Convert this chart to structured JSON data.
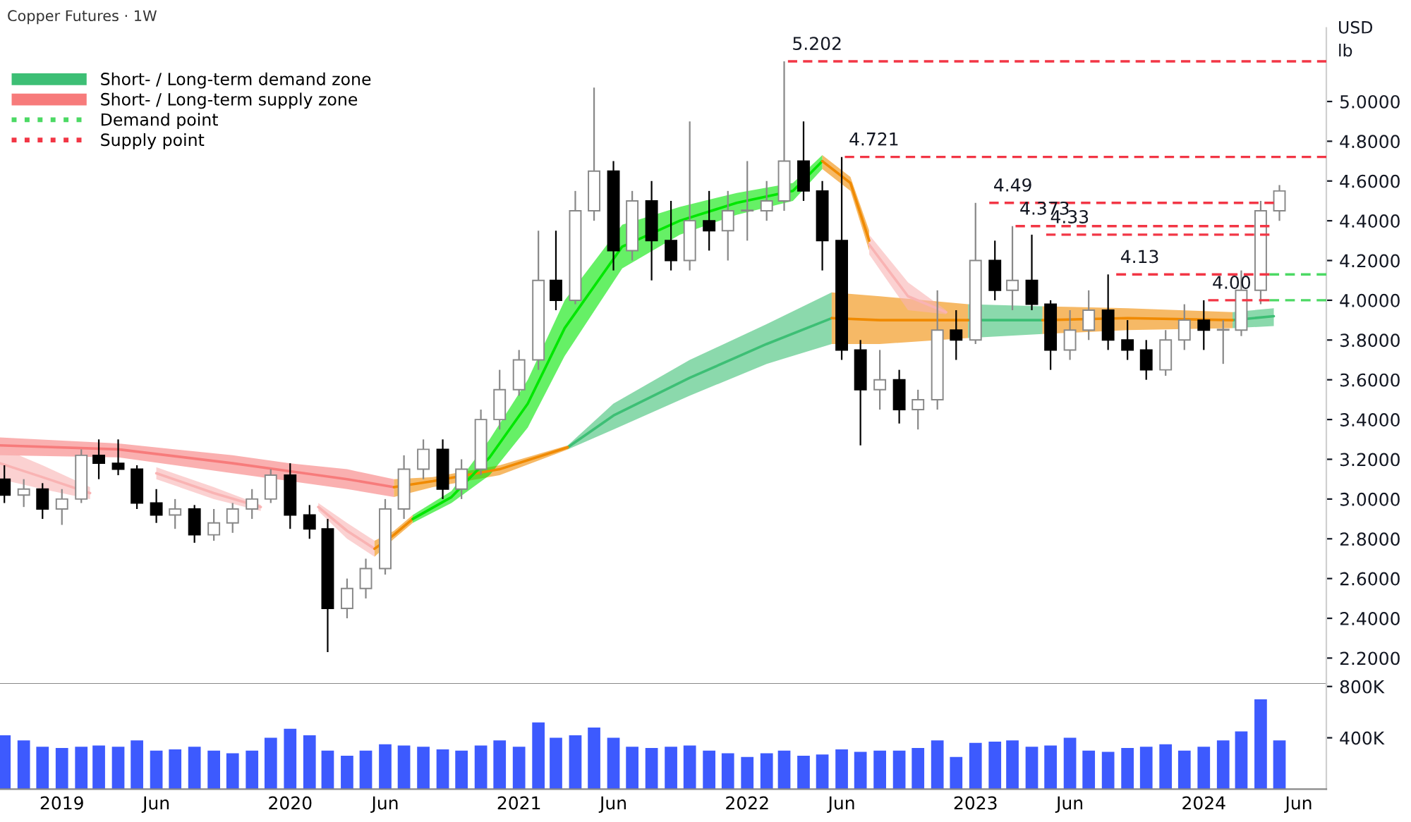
{
  "chart_data": [
    {
      "type": "candlestick",
      "title": "Copper Futures · 1W",
      "legend": "top left",
      "grid": false,
      "tick_labels": "y",
      "annotations": [
        "USD",
        "lb",
        {
          "text": "5.202",
          "x": "2022-03-07",
          "y": 5.202
        },
        {
          "text": "4.721",
          "x": "2022-06-06",
          "y": 4.721
        },
        {
          "text": "4.49",
          "x": "2023-01-23",
          "y": 4.49
        },
        {
          "text": "4.373",
          "x": "2023-03-06",
          "y": 4.373
        },
        {
          "text": "4.33",
          "x": "2023-04-24",
          "y": 4.33
        },
        {
          "text": "4.13",
          "x": "2023-08-14",
          "y": 4.13
        },
        {
          "text": "4.00",
          "x": "2024-01-08",
          "y": 4.0
        }
      ],
      "xlim": [
        "2018-09-24",
        "2024-07-15"
      ],
      "ylim": [
        2.07,
        5.37
      ],
      "yticks": [
        {
          "value": 2.2,
          "label": "2.2000"
        },
        {
          "value": 2.4,
          "label": "2.4000"
        },
        {
          "value": 2.6,
          "label": "2.6000"
        },
        {
          "value": 2.8,
          "label": "2.8000"
        },
        {
          "value": 3.0,
          "label": "3.0000"
        },
        {
          "value": 3.2,
          "label": "3.2000"
        },
        {
          "value": 3.4,
          "label": "3.4000"
        },
        {
          "value": 3.6,
          "label": "3.6000"
        },
        {
          "value": 3.8,
          "label": "3.8000"
        },
        {
          "value": 4.0,
          "label": "4.0000"
        },
        {
          "value": 4.2,
          "label": "4.2000"
        },
        {
          "value": 4.4,
          "label": "4.4000"
        },
        {
          "value": 4.6,
          "label": "4.6000"
        },
        {
          "value": 4.8,
          "label": "4.8000"
        },
        {
          "value": 5.0,
          "label": "5.0000"
        }
      ],
      "x": [
        "2018-10",
        "2018-11",
        "2018-12",
        "2019-01",
        "2019-02",
        "2019-03",
        "2019-04",
        "2019-05",
        "2019-06",
        "2019-07",
        "2019-08",
        "2019-09",
        "2019-10",
        "2019-11",
        "2019-12",
        "2020-01",
        "2020-02",
        "2020-03",
        "2020-04",
        "2020-05",
        "2020-06",
        "2020-07",
        "2020-08",
        "2020-09",
        "2020-10",
        "2020-11",
        "2020-12",
        "2021-01",
        "2021-02",
        "2021-03",
        "2021-04",
        "2021-05",
        "2021-06",
        "2021-07",
        "2021-08",
        "2021-09",
        "2021-10",
        "2021-11",
        "2021-12",
        "2022-01",
        "2022-02",
        "2022-03",
        "2022-04",
        "2022-05",
        "2022-06",
        "2022-07",
        "2022-08",
        "2022-09",
        "2022-10",
        "2022-11",
        "2022-12",
        "2023-01",
        "2023-02",
        "2023-03",
        "2023-04",
        "2023-05",
        "2023-06",
        "2023-07",
        "2023-08",
        "2023-09",
        "2023-10",
        "2023-11",
        "2023-12",
        "2024-01",
        "2024-02",
        "2024-03",
        "2024-04",
        "2024-05"
      ],
      "ohlc": [
        [
          3.1,
          3.17,
          2.98,
          3.02
        ],
        [
          3.02,
          3.1,
          2.96,
          3.05
        ],
        [
          3.05,
          3.08,
          2.9,
          2.95
        ],
        [
          2.95,
          3.05,
          2.87,
          3.0
        ],
        [
          3.0,
          3.25,
          2.98,
          3.22
        ],
        [
          3.22,
          3.3,
          3.1,
          3.18
        ],
        [
          3.18,
          3.3,
          3.12,
          3.15
        ],
        [
          3.15,
          3.17,
          2.95,
          2.98
        ],
        [
          2.98,
          3.05,
          2.88,
          2.92
        ],
        [
          2.92,
          3.0,
          2.85,
          2.95
        ],
        [
          2.95,
          2.97,
          2.78,
          2.82
        ],
        [
          2.82,
          2.95,
          2.79,
          2.88
        ],
        [
          2.88,
          2.98,
          2.83,
          2.95
        ],
        [
          2.95,
          3.05,
          2.9,
          3.0
        ],
        [
          3.0,
          3.15,
          2.98,
          3.12
        ],
        [
          3.12,
          3.18,
          2.85,
          2.92
        ],
        [
          2.92,
          2.97,
          2.8,
          2.85
        ],
        [
          2.85,
          2.9,
          2.23,
          2.45
        ],
        [
          2.45,
          2.6,
          2.4,
          2.55
        ],
        [
          2.55,
          2.7,
          2.5,
          2.65
        ],
        [
          2.65,
          3.0,
          2.62,
          2.95
        ],
        [
          2.95,
          3.22,
          2.9,
          3.15
        ],
        [
          3.15,
          3.3,
          3.1,
          3.25
        ],
        [
          3.25,
          3.3,
          3.0,
          3.05
        ],
        [
          3.05,
          3.2,
          3.0,
          3.15
        ],
        [
          3.15,
          3.45,
          3.12,
          3.4
        ],
        [
          3.4,
          3.65,
          3.35,
          3.55
        ],
        [
          3.55,
          3.75,
          3.52,
          3.7
        ],
        [
          3.7,
          4.35,
          3.65,
          4.1
        ],
        [
          4.1,
          4.35,
          3.95,
          4.0
        ],
        [
          4.0,
          4.55,
          3.98,
          4.45
        ],
        [
          4.45,
          5.07,
          4.4,
          4.65
        ],
        [
          4.65,
          4.7,
          4.15,
          4.25
        ],
        [
          4.25,
          4.55,
          4.2,
          4.5
        ],
        [
          4.5,
          4.6,
          4.1,
          4.3
        ],
        [
          4.3,
          4.5,
          4.15,
          4.2
        ],
        [
          4.2,
          4.9,
          4.15,
          4.4
        ],
        [
          4.4,
          4.55,
          4.25,
          4.35
        ],
        [
          4.35,
          4.55,
          4.2,
          4.45
        ],
        [
          4.45,
          4.7,
          4.3,
          4.45
        ],
        [
          4.45,
          4.6,
          4.4,
          4.5
        ],
        [
          4.5,
          5.202,
          4.45,
          4.7
        ],
        [
          4.7,
          4.9,
          4.5,
          4.55
        ],
        [
          4.55,
          4.6,
          4.15,
          4.3
        ],
        [
          4.3,
          4.721,
          3.7,
          3.75
        ],
        [
          3.75,
          3.8,
          3.27,
          3.55
        ],
        [
          3.55,
          3.75,
          3.45,
          3.6
        ],
        [
          3.6,
          3.65,
          3.38,
          3.45
        ],
        [
          3.45,
          3.55,
          3.35,
          3.5
        ],
        [
          3.5,
          4.05,
          3.45,
          3.85
        ],
        [
          3.85,
          3.95,
          3.7,
          3.8
        ],
        [
          3.8,
          4.49,
          3.78,
          4.2
        ],
        [
          4.2,
          4.3,
          4.0,
          4.05
        ],
        [
          4.05,
          4.373,
          3.95,
          4.1
        ],
        [
          4.1,
          4.33,
          3.95,
          3.98
        ],
        [
          3.98,
          4.0,
          3.65,
          3.75
        ],
        [
          3.75,
          3.95,
          3.7,
          3.85
        ],
        [
          3.85,
          4.05,
          3.8,
          3.95
        ],
        [
          3.95,
          4.13,
          3.75,
          3.8
        ],
        [
          3.8,
          3.9,
          3.7,
          3.75
        ],
        [
          3.75,
          3.8,
          3.6,
          3.65
        ],
        [
          3.65,
          3.85,
          3.62,
          3.8
        ],
        [
          3.8,
          3.98,
          3.75,
          3.9
        ],
        [
          3.9,
          4.0,
          3.75,
          3.85
        ],
        [
          3.85,
          3.9,
          3.68,
          3.85
        ],
        [
          3.85,
          4.15,
          3.82,
          4.05
        ],
        [
          4.05,
          4.5,
          3.98,
          4.45
        ],
        [
          4.45,
          4.58,
          4.4,
          4.55
        ]
      ],
      "series": [
        {
          "type": "line",
          "name": "Short- / Long-term demand zone",
          "color": "#3dbf75",
          "x": [
            "2021-03-20",
            "2021-06-01",
            "2021-10-01",
            "2022-02-01",
            "2022-05-16",
            "2022-09-01",
            "2022-12-20",
            "2023-04-18",
            "2023-09-01",
            "2024-02-16",
            "2024-04-22"
          ],
          "lower": [
            3.25,
            3.35,
            3.52,
            3.68,
            3.78,
            null,
            3.81,
            3.83,
            null,
            3.86,
            3.87
          ],
          "upper": [
            3.27,
            3.48,
            3.7,
            3.88,
            4.04,
            null,
            3.98,
            3.97,
            null,
            3.94,
            3.96
          ],
          "values": [
            3.26,
            3.42,
            3.61,
            3.78,
            3.91,
            null,
            3.9,
            3.9,
            null,
            3.9,
            3.92
          ]
        },
        {
          "type": "line",
          "name": "Short- / Long-term supply zone",
          "color": "#f77b7b",
          "x": [
            "2018-09-24",
            "2019-04-01",
            "2019-10-01",
            "2020-01-01",
            "2020-04-01",
            "2020-06-15"
          ],
          "lower": [
            3.22,
            3.21,
            3.13,
            3.09,
            3.05,
            3.01
          ],
          "upper": [
            3.31,
            3.28,
            3.22,
            3.18,
            3.15,
            3.1
          ],
          "values": [
            3.27,
            3.25,
            3.18,
            3.14,
            3.1,
            3.06
          ]
        },
        {
          "type": "line",
          "color": "#f08a00",
          "x": [
            "2020-06-15",
            "2020-08-16",
            "2020-12-01",
            "2021-03-20"
          ],
          "lower": [
            3.01,
            3.06,
            3.12,
            3.25
          ],
          "upper": [
            3.1,
            3.11,
            3.17,
            3.27
          ],
          "values": [
            3.06,
            3.09,
            3.15,
            3.26
          ]
        },
        {
          "type": "line",
          "color": "#f08a00",
          "x": [
            "2022-05-16",
            "2022-08-01",
            "2022-12-20"
          ],
          "lower": [
            3.78,
            3.78,
            3.81
          ],
          "upper": [
            4.04,
            4.02,
            3.98
          ],
          "values": [
            3.91,
            3.9,
            3.9
          ]
        },
        {
          "type": "line",
          "color": "#f08a00",
          "x": [
            "2023-04-18",
            "2023-09-01",
            "2024-02-16"
          ],
          "lower": [
            3.83,
            3.85,
            3.86
          ],
          "upper": [
            3.97,
            3.96,
            3.94
          ],
          "values": [
            3.9,
            3.91,
            3.9
          ]
        },
        {
          "type": "line",
          "color": "#f9b3b3",
          "x": [
            "2018-09-24",
            "2018-12-01",
            "2019-02-15"
          ],
          "lower": [
            3.1,
            3.05,
            3.0
          ],
          "upper": [
            3.26,
            3.17,
            3.06
          ],
          "values": [
            3.18,
            3.11,
            3.03
          ]
        },
        {
          "type": "line",
          "color": "#f9b3b3",
          "x": [
            "2019-06-01",
            "2019-09-01",
            "2019-11-15"
          ],
          "lower": [
            3.1,
            3.0,
            2.94
          ],
          "upper": [
            3.16,
            3.06,
            2.97
          ],
          "values": [
            3.13,
            3.03,
            2.96
          ]
        },
        {
          "type": "line",
          "color": "#f9b3b3",
          "x": [
            "2020-02-15",
            "2020-04-01",
            "2020-05-15"
          ],
          "lower": [
            2.94,
            2.8,
            2.71
          ],
          "upper": [
            2.98,
            2.88,
            2.79
          ],
          "values": [
            2.96,
            2.84,
            2.75
          ]
        },
        {
          "type": "line",
          "color": "#f08a00",
          "x": [
            "2020-05-15",
            "2020-06-15",
            "2020-07-15"
          ],
          "lower": [
            2.71,
            2.8,
            2.88
          ],
          "upper": [
            2.79,
            2.84,
            2.92
          ],
          "values": [
            2.75,
            2.82,
            2.9
          ]
        },
        {
          "type": "line",
          "color": "#00e600",
          "x": [
            "2020-07-15",
            "2020-09-15",
            "2020-11-15",
            "2021-01-15",
            "2021-03-15",
            "2021-06-15",
            "2021-09-15",
            "2021-12-15",
            "2022-03-15",
            "2022-05-01"
          ],
          "lower": [
            2.88,
            2.98,
            3.12,
            3.36,
            3.72,
            4.16,
            4.33,
            4.43,
            4.5,
            4.66
          ],
          "upper": [
            2.92,
            3.04,
            3.3,
            3.6,
            4.0,
            4.38,
            4.47,
            4.54,
            4.59,
            4.73
          ],
          "values": [
            2.9,
            3.01,
            3.21,
            3.48,
            3.86,
            4.27,
            4.4,
            4.49,
            4.55,
            4.7
          ]
        },
        {
          "type": "line",
          "color": "#f08a00",
          "x": [
            "2022-05-01",
            "2022-06-15",
            "2022-07-15"
          ],
          "lower": [
            4.66,
            4.55,
            4.25
          ],
          "upper": [
            4.73,
            4.62,
            4.35
          ],
          "values": [
            4.7,
            4.59,
            4.3
          ]
        },
        {
          "type": "line",
          "color": "#f9b3b3",
          "x": [
            "2022-07-15",
            "2022-09-15",
            "2022-11-15"
          ],
          "lower": [
            4.23,
            3.95,
            3.93
          ],
          "upper": [
            4.33,
            4.09,
            3.95
          ],
          "values": [
            4.28,
            4.02,
            3.94
          ]
        },
        {
          "type": "line",
          "name": "Demand point",
          "color": "#4cd964",
          "line_style": "dashed",
          "x": [
            "2024-04-15",
            "2024-07-15"
          ],
          "values": [
            4.13,
            4.13
          ]
        },
        {
          "type": "line",
          "color": "#4cd964",
          "line_style": "dashed",
          "x": [
            "2024-04-15",
            "2024-07-15"
          ],
          "values": [
            4.0,
            4.0
          ]
        },
        {
          "type": "line",
          "name": "Supply point",
          "color": "#f23645",
          "line_style": "dashed",
          "x": [
            "2022-03-07",
            "2024-07-15"
          ],
          "values": [
            5.202,
            5.202
          ]
        },
        {
          "type": "line",
          "color": "#f23645",
          "line_style": "dashed",
          "x": [
            "2022-06-06",
            "2024-07-15"
          ],
          "values": [
            4.721,
            4.721
          ]
        },
        {
          "type": "line",
          "color": "#f23645",
          "line_style": "dashed",
          "x": [
            "2023-01-23",
            "2024-04-22"
          ],
          "values": [
            4.49,
            4.49
          ]
        },
        {
          "type": "line",
          "color": "#f23645",
          "line_style": "dashed",
          "x": [
            "2023-03-06",
            "2024-04-15"
          ],
          "values": [
            4.373,
            4.373
          ]
        },
        {
          "type": "line",
          "color": "#f23645",
          "line_style": "dashed",
          "x": [
            "2023-04-24",
            "2024-04-15"
          ],
          "values": [
            4.33,
            4.33
          ]
        },
        {
          "type": "line",
          "color": "#f23645",
          "line_style": "dashed",
          "x": [
            "2023-08-14",
            "2024-04-15"
          ],
          "values": [
            4.13,
            4.13
          ]
        },
        {
          "type": "line",
          "color": "#f23645",
          "line_style": "dashed",
          "x": [
            "2024-01-08",
            "2024-04-15"
          ],
          "values": [
            4.0,
            4.0
          ]
        }
      ]
    },
    {
      "type": "bar",
      "color": "#3d5afe",
      "grid": false,
      "xlim": [
        "2018-09-24",
        "2024-07-15"
      ],
      "xticks": [
        {
          "value": "2019-01-01",
          "label": "2019"
        },
        {
          "value": "2019-06-01",
          "label": "Jun"
        },
        {
          "value": "2020-01-01",
          "label": "2020"
        },
        {
          "value": "2020-06-01",
          "label": "Jun"
        },
        {
          "value": "2021-01-01",
          "label": "2021"
        },
        {
          "value": "2021-06-01",
          "label": "Jun"
        },
        {
          "value": "2022-01-01",
          "label": "2022"
        },
        {
          "value": "2022-06-01",
          "label": "Jun"
        },
        {
          "value": "2023-01-01",
          "label": "2023"
        },
        {
          "value": "2023-06-01",
          "label": "Jun"
        },
        {
          "value": "2024-01-01",
          "label": "2024"
        },
        {
          "value": "2024-06-01",
          "label": "Jun"
        }
      ],
      "ylim": [
        0,
        820000
      ],
      "yticks": [
        {
          "value": 400000,
          "label": "400K"
        },
        {
          "value": 800000,
          "label": "800K"
        }
      ],
      "x": [
        "2018-10",
        "2018-11",
        "2018-12",
        "2019-01",
        "2019-02",
        "2019-03",
        "2019-04",
        "2019-05",
        "2019-06",
        "2019-07",
        "2019-08",
        "2019-09",
        "2019-10",
        "2019-11",
        "2019-12",
        "2020-01",
        "2020-02",
        "2020-03",
        "2020-04",
        "2020-05",
        "2020-06",
        "2020-07",
        "2020-08",
        "2020-09",
        "2020-10",
        "2020-11",
        "2020-12",
        "2021-01",
        "2021-02",
        "2021-03",
        "2021-04",
        "2021-05",
        "2021-06",
        "2021-07",
        "2021-08",
        "2021-09",
        "2021-10",
        "2021-11",
        "2021-12",
        "2022-01",
        "2022-02",
        "2022-03",
        "2022-04",
        "2022-05",
        "2022-06",
        "2022-07",
        "2022-08",
        "2022-09",
        "2022-10",
        "2022-11",
        "2022-12",
        "2023-01",
        "2023-02",
        "2023-03",
        "2023-04",
        "2023-05",
        "2023-06",
        "2023-07",
        "2023-08",
        "2023-09",
        "2023-10",
        "2023-11",
        "2023-12",
        "2024-01",
        "2024-02",
        "2024-03",
        "2024-04",
        "2024-05"
      ],
      "values": [
        420000,
        380000,
        330000,
        320000,
        330000,
        340000,
        330000,
        380000,
        300000,
        310000,
        330000,
        300000,
        280000,
        300000,
        400000,
        470000,
        420000,
        300000,
        260000,
        300000,
        350000,
        340000,
        330000,
        310000,
        300000,
        340000,
        380000,
        330000,
        520000,
        400000,
        420000,
        480000,
        400000,
        330000,
        320000,
        330000,
        340000,
        300000,
        280000,
        250000,
        280000,
        300000,
        260000,
        270000,
        310000,
        290000,
        300000,
        300000,
        320000,
        380000,
        250000,
        360000,
        370000,
        380000,
        330000,
        340000,
        400000,
        300000,
        290000,
        320000,
        330000,
        350000,
        300000,
        330000,
        380000,
        450000,
        700000,
        380000
      ]
    }
  ]
}
